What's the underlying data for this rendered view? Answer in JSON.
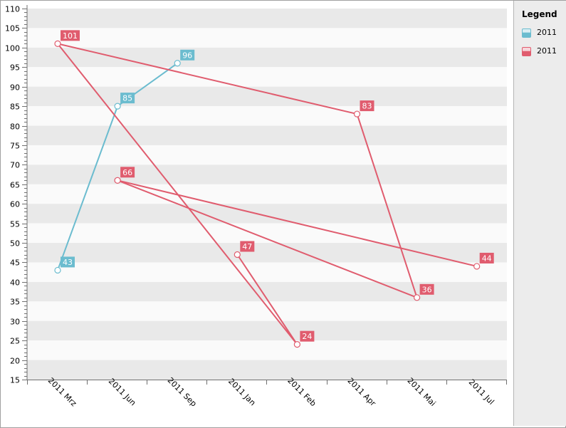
{
  "chart_data": {
    "type": "line",
    "categories": [
      "2011 Mrz",
      "2011 Jun",
      "2011 Sep",
      "2011 Jan",
      "2011 Feb",
      "2011 Apr",
      "2011 Mai",
      "2011 Jul"
    ],
    "ylim": [
      15,
      110
    ],
    "y_major_step": 5,
    "y_minor_step": 1,
    "grid": "alternating horizontal bands",
    "legend_position": "right",
    "series": [
      {
        "name": "2011",
        "color": "#6bbccf",
        "points": [
          {
            "x": "2011 Mrz",
            "y": 43
          },
          {
            "x": "2011 Jun",
            "y": 85
          },
          {
            "x": "2011 Sep",
            "y": 96
          }
        ]
      },
      {
        "name": "2011",
        "color": "#e05c6e",
        "points": [
          {
            "x": "2011 Jun",
            "y": 66
          },
          {
            "x": "2011 Jul",
            "y": 44
          }
        ]
      },
      {
        "name": "",
        "color": "#e05c6e",
        "points": [
          {
            "x": "2011 Jun",
            "y": 66
          },
          {
            "x": "2011 Mai",
            "y": 36
          },
          {
            "x": "2011 Apr",
            "y": 83
          },
          {
            "x": "2011 Mrz",
            "y": 101
          },
          {
            "x": "2011 Feb",
            "y": 24
          },
          {
            "x": "2011 Jan",
            "y": 47
          }
        ]
      }
    ],
    "data_labels": [
      {
        "x": "2011 Mrz",
        "y": 43,
        "text": "43",
        "color": "#6bbccf"
      },
      {
        "x": "2011 Jun",
        "y": 85,
        "text": "85",
        "color": "#6bbccf"
      },
      {
        "x": "2011 Sep",
        "y": 96,
        "text": "96",
        "color": "#6bbccf"
      },
      {
        "x": "2011 Mrz",
        "y": 101,
        "text": "101",
        "color": "#e05c6e"
      },
      {
        "x": "2011 Jun",
        "y": 66,
        "text": "66",
        "color": "#e05c6e"
      },
      {
        "x": "2011 Jan",
        "y": 47,
        "text": "47",
        "color": "#e05c6e"
      },
      {
        "x": "2011 Feb",
        "y": 24,
        "text": "24",
        "color": "#e05c6e"
      },
      {
        "x": "2011 Apr",
        "y": 83,
        "text": "83",
        "color": "#e05c6e"
      },
      {
        "x": "2011 Mai",
        "y": 36,
        "text": "36",
        "color": "#e05c6e"
      },
      {
        "x": "2011 Jul",
        "y": 44,
        "text": "44",
        "color": "#e05c6e"
      }
    ]
  },
  "legend": {
    "title": "Legend",
    "items": [
      {
        "label": "2011",
        "color": "#6bbccf"
      },
      {
        "label": "2011",
        "color": "#e05c6e"
      }
    ]
  },
  "colors": {
    "band_dark": "#e9e9e9",
    "band_light": "#fafafa",
    "axis": "#707070",
    "blue_series": "#6bbccf",
    "red_series": "#e05c6e"
  }
}
